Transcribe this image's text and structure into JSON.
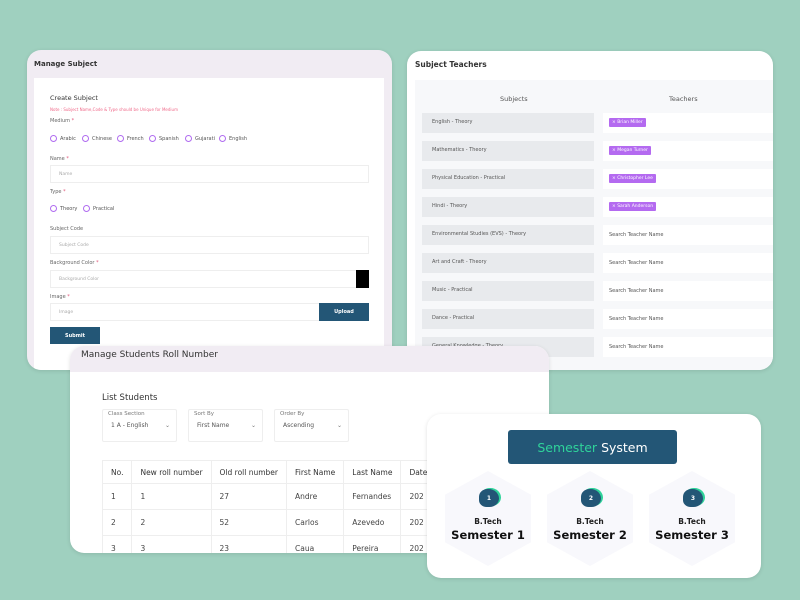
{
  "manage_subject": {
    "title": "Manage Subject",
    "form_title": "Create Subject",
    "note": "Note : Subject Name,Code & Type should be Unique for Medium",
    "medium_label": "Medium",
    "required": "*",
    "mediums": [
      "Arabic",
      "Chinese",
      "French",
      "Spanish",
      "Gujarati",
      "English"
    ],
    "name_label": "Name",
    "name_placeholder": "Name",
    "type_label": "Type",
    "types": [
      "Theory",
      "Practical"
    ],
    "code_label": "Subject Code",
    "code_placeholder": "Subject Code",
    "color_label": "Background Color",
    "color_placeholder": "Background Color",
    "color_value": "#000000",
    "image_label": "Image",
    "image_placeholder": "Image",
    "upload": "Upload",
    "submit": "Submit"
  },
  "subject_teachers": {
    "title": "Subject Teachers",
    "col_subjects": "Subjects",
    "col_teachers": "Teachers",
    "rows": [
      {
        "subject": "English - Theory",
        "teacher": "× Brian Miller"
      },
      {
        "subject": "Mathematics - Theory",
        "teacher": "× Megan Turner"
      },
      {
        "subject": "Physical Education - Practical",
        "teacher": "× Christopher Lee"
      },
      {
        "subject": "Hindi - Theory",
        "teacher": "× Sarah Anderson"
      },
      {
        "subject": "Environmental Studies (EVS) - Theory",
        "placeholder": "Search Teacher Name"
      },
      {
        "subject": "Art and Craft - Theory",
        "placeholder": "Search Teacher Name"
      },
      {
        "subject": "Music - Practical",
        "placeholder": "Search Teacher Name"
      },
      {
        "subject": "Dance - Practical",
        "placeholder": "Search Teacher Name"
      },
      {
        "subject": "General Knowledge - Theory",
        "placeholder": "Search Teacher Name"
      }
    ]
  },
  "roll": {
    "title": "Manage Students Roll Number",
    "list_title": "List Students",
    "filters": [
      {
        "label": "Class Section",
        "value": "1 A - English"
      },
      {
        "label": "Sort By",
        "value": "First Name"
      },
      {
        "label": "Order By",
        "value": "Ascending"
      }
    ],
    "columns": [
      "No.",
      "New roll number",
      "Old roll number",
      "First Name",
      "Last Name",
      "Date"
    ],
    "rows": [
      [
        "1",
        "1",
        "27",
        "Andre",
        "Fernandes",
        "202"
      ],
      [
        "2",
        "2",
        "52",
        "Carlos",
        "Azevedo",
        "202"
      ],
      [
        "3",
        "3",
        "23",
        "Caua",
        "Pereira",
        "202"
      ]
    ]
  },
  "semester": {
    "title_accent": "Semester",
    "title_rest": "System",
    "items": [
      {
        "num": "1",
        "program": "B.Tech",
        "name": "Semester 1"
      },
      {
        "num": "2",
        "program": "B.Tech",
        "name": "Semester 2"
      },
      {
        "num": "3",
        "program": "B.Tech",
        "name": "Semester 3"
      }
    ]
  }
}
